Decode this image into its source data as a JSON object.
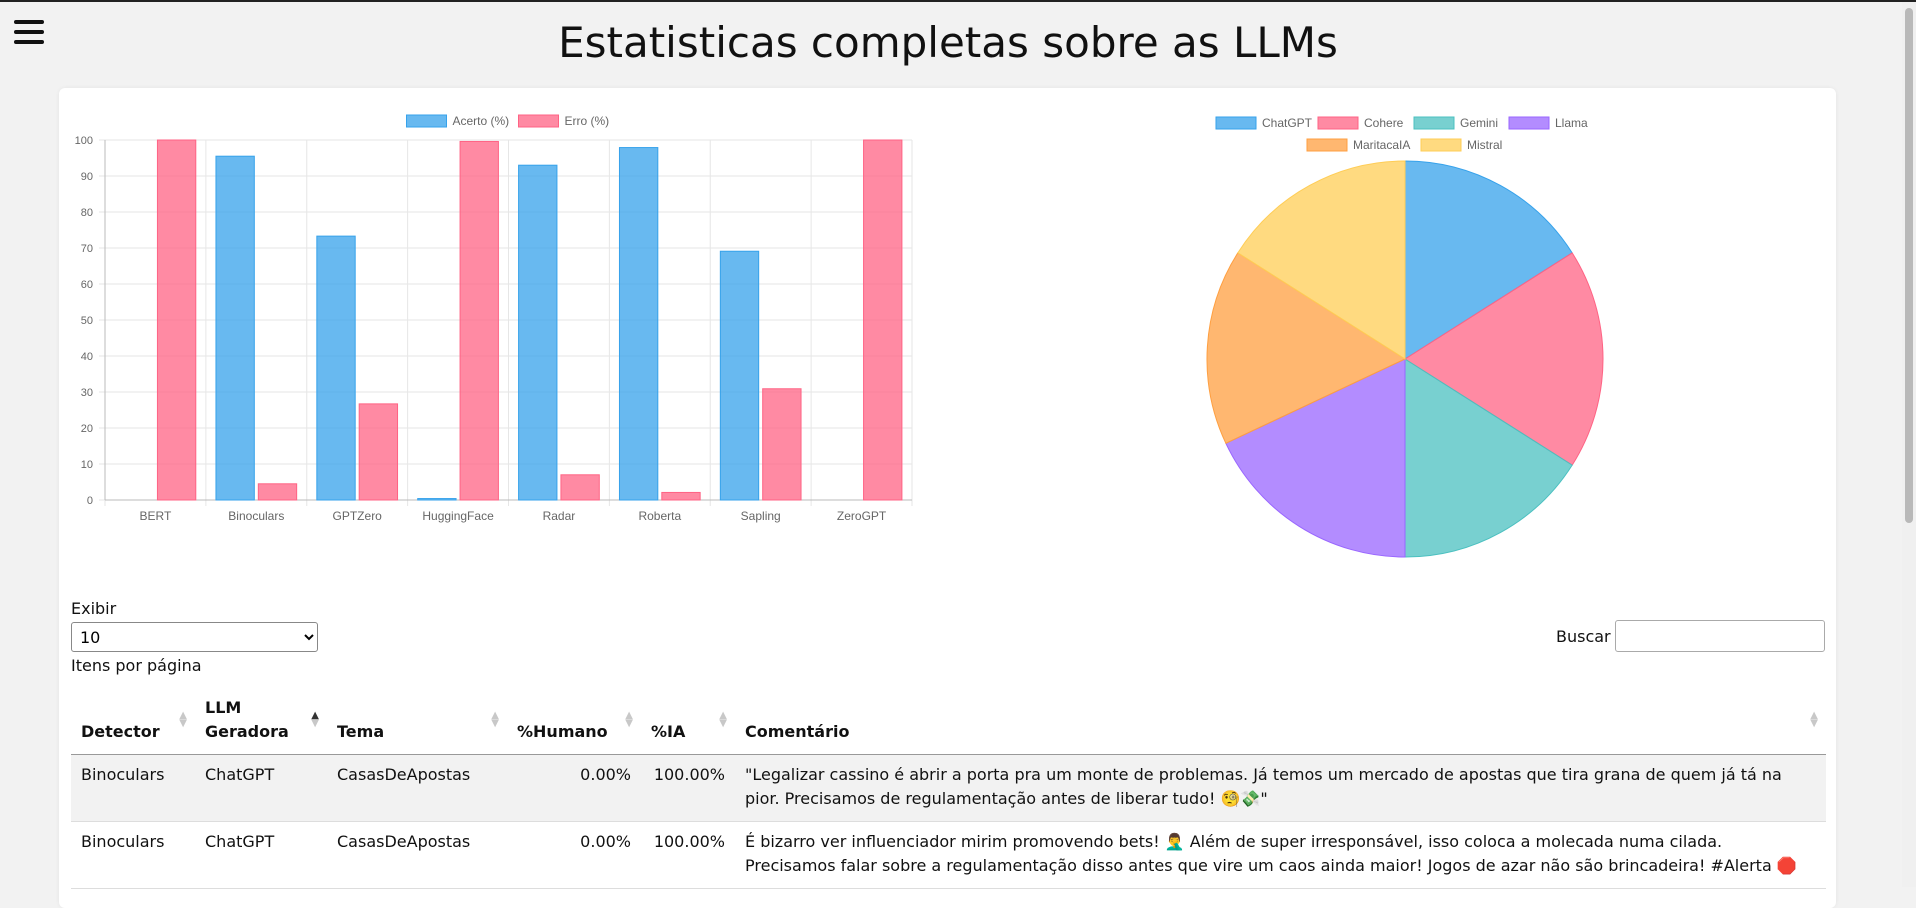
{
  "header": {
    "title": "Estatisticas completas sobre as LLMs"
  },
  "controls": {
    "show_label": "Exibir",
    "page_size": "10",
    "page_size_suffix": "Itens por página",
    "search_label": "Buscar",
    "search_value": ""
  },
  "chart_data": [
    {
      "type": "bar",
      "categories": [
        "BERT",
        "Binoculars",
        "GPTZero",
        "HuggingFace",
        "Radar",
        "Roberta",
        "Sapling",
        "ZeroGPT"
      ],
      "series": [
        {
          "name": "Acerto (%)",
          "color": "#36a2eb",
          "values": [
            0,
            95.5,
            73.3,
            0.4,
            93,
            97.9,
            69.1,
            0
          ]
        },
        {
          "name": "Erro (%)",
          "color": "#ff6384",
          "values": [
            100,
            4.5,
            26.7,
            99.6,
            7,
            2.1,
            30.9,
            100
          ]
        }
      ],
      "ylim": [
        0,
        100
      ],
      "yticks": [
        "0",
        "10",
        "20",
        "30",
        "40",
        "50",
        "60",
        "70",
        "80",
        "90",
        "100"
      ],
      "grid": true,
      "legend": "top"
    },
    {
      "type": "pie",
      "labels": [
        "ChatGPT",
        "Cohere",
        "Gemini",
        "Llama",
        "MaritacaIA",
        "Mistral"
      ],
      "values": [
        16,
        18,
        16,
        18,
        16,
        16
      ],
      "colors": [
        "#36a2eb",
        "#ff6384",
        "#4bc0c0",
        "#9966ff",
        "#ff9f40",
        "#ffcd56"
      ],
      "legend": "top"
    }
  ],
  "table": {
    "columns": [
      {
        "label": "Detector"
      },
      {
        "label": "LLM Geradora"
      },
      {
        "label": "Tema"
      },
      {
        "label": "%Humano"
      },
      {
        "label": "%IA"
      },
      {
        "label": "Comentário"
      }
    ],
    "rows": [
      {
        "detector": "Binoculars",
        "llm": "ChatGPT",
        "tema": "CasasDeApostas",
        "humano": "0.00%",
        "ia": "100.00%",
        "comentario": "\"Legalizar cassino é abrir a porta pra um monte de problemas. Já temos um mercado de apostas que tira grana de quem já tá na pior. Precisamos de regulamentação antes de liberar tudo! 🧐💸\""
      },
      {
        "detector": "Binoculars",
        "llm": "ChatGPT",
        "tema": "CasasDeApostas",
        "humano": "0.00%",
        "ia": "100.00%",
        "comentario": "É bizarro ver influenciador mirim promovendo bets! 🤦‍♂️ Além de super irresponsável, isso coloca a molecada numa cilada. Precisamos falar sobre a regulamentação disso antes que vire um caos ainda maior! Jogos de azar não são brincadeira! #Alerta 🛑"
      }
    ]
  }
}
